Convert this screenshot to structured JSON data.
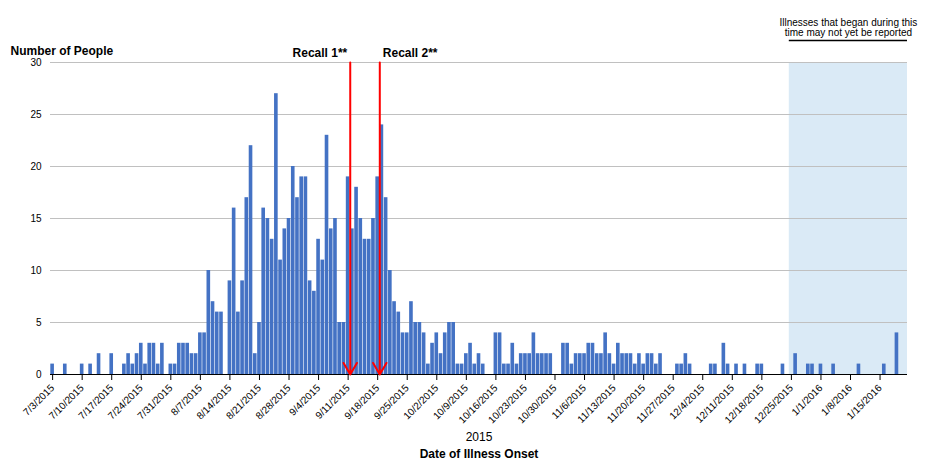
{
  "chart_data": {
    "type": "bar",
    "ylabel": "Number of People",
    "xlabel": [
      "2015",
      "Date of Illness Onset"
    ],
    "categories": [
      "7/3/2015",
      null,
      null,
      null,
      null,
      null,
      null,
      "7/10/2015",
      null,
      null,
      null,
      null,
      null,
      null,
      "7/17/2015",
      null,
      null,
      null,
      null,
      null,
      null,
      "7/24/2015",
      null,
      null,
      null,
      null,
      null,
      null,
      "7/31/2015",
      null,
      null,
      null,
      null,
      null,
      null,
      "8/7/2015",
      null,
      null,
      null,
      null,
      null,
      null,
      "8/14/2015",
      null,
      null,
      null,
      null,
      null,
      null,
      "8/21/2015",
      null,
      null,
      null,
      null,
      null,
      null,
      "8/28/2015",
      null,
      null,
      null,
      null,
      null,
      null,
      "9/4/2015",
      null,
      null,
      null,
      null,
      null,
      null,
      "9/11/2015",
      null,
      null,
      null,
      null,
      null,
      null,
      "9/18/2015",
      null,
      null,
      null,
      null,
      null,
      null,
      "9/25/2015",
      null,
      null,
      null,
      null,
      null,
      null,
      "10/2/2015",
      null,
      null,
      null,
      null,
      null,
      null,
      "10/9/2015",
      null,
      null,
      null,
      null,
      null,
      null,
      "10/16/2015",
      null,
      null,
      null,
      null,
      null,
      null,
      "10/23/2015",
      null,
      null,
      null,
      null,
      null,
      null,
      "10/30/2015",
      null,
      null,
      null,
      null,
      null,
      null,
      "11/6/2015",
      null,
      null,
      null,
      null,
      null,
      null,
      "11/13/2015",
      null,
      null,
      null,
      null,
      null,
      null,
      "11/20/2015",
      null,
      null,
      null,
      null,
      null,
      null,
      "11/27/2015",
      null,
      null,
      null,
      null,
      null,
      null,
      "12/4/2015",
      null,
      null,
      null,
      null,
      null,
      null,
      "12/11/2015",
      null,
      null,
      null,
      null,
      null,
      null,
      "12/18/2015",
      null,
      null,
      null,
      null,
      null,
      null,
      "12/25/2015",
      null,
      null,
      null,
      null,
      null,
      null,
      "1/1/2016",
      null,
      null,
      null,
      null,
      null,
      null,
      "1/8/2016",
      null,
      null,
      null,
      null,
      null,
      null,
      "1/15/2016",
      null,
      null,
      null,
      null,
      null,
      null
    ],
    "values": [
      1,
      0,
      0,
      1,
      0,
      0,
      0,
      1,
      0,
      1,
      0,
      2,
      0,
      0,
      2,
      0,
      0,
      1,
      2,
      1,
      2,
      3,
      1,
      3,
      3,
      1,
      3,
      0,
      1,
      1,
      3,
      3,
      3,
      2,
      2,
      4,
      4,
      10,
      7,
      6,
      6,
      0,
      9,
      16,
      6,
      9,
      17,
      22,
      2,
      5,
      16,
      15,
      13,
      27,
      11,
      14,
      15,
      20,
      17,
      19,
      19,
      9,
      8,
      13,
      11,
      23,
      14,
      15,
      5,
      5,
      19,
      14,
      18,
      15,
      13,
      13,
      15,
      19,
      24,
      17,
      10,
      7,
      6,
      4,
      4,
      7,
      5,
      5,
      4,
      1,
      3,
      4,
      2,
      4,
      5,
      5,
      1,
      1,
      2,
      3,
      1,
      2,
      1,
      0,
      0,
      4,
      4,
      1,
      1,
      3,
      1,
      2,
      2,
      2,
      4,
      2,
      2,
      2,
      2,
      0,
      0,
      3,
      3,
      1,
      2,
      2,
      2,
      3,
      3,
      2,
      2,
      4,
      2,
      1,
      3,
      2,
      2,
      2,
      1,
      2,
      1,
      2,
      2,
      1,
      2,
      0,
      0,
      0,
      1,
      1,
      2,
      1,
      0,
      0,
      0,
      0,
      1,
      1,
      0,
      3,
      1,
      0,
      1,
      0,
      1,
      0,
      0,
      1,
      1,
      0,
      0,
      0,
      0,
      1,
      0,
      0,
      2,
      0,
      0,
      1,
      1,
      0,
      1,
      0,
      0,
      1,
      0,
      0,
      0,
      0,
      0,
      1,
      0,
      0,
      0,
      0,
      0,
      1,
      0,
      0,
      4,
      0,
      0
    ],
    "color": "#4472C4",
    "ylim": [
      0,
      30
    ],
    "yticks": [
      0,
      5,
      10,
      15,
      20,
      25,
      30
    ],
    "grid": true,
    "annotations": [
      {
        "text": "Recall 1**",
        "x": "9/11/2015",
        "color": "red"
      },
      {
        "text": "Recall 2**",
        "x": "9/18/2015",
        "color": "red"
      },
      {
        "text": "Illnesses that began during this\ntime may not yet be reported",
        "from": "12/25/2015",
        "color": "#DAEAF6"
      }
    ]
  }
}
